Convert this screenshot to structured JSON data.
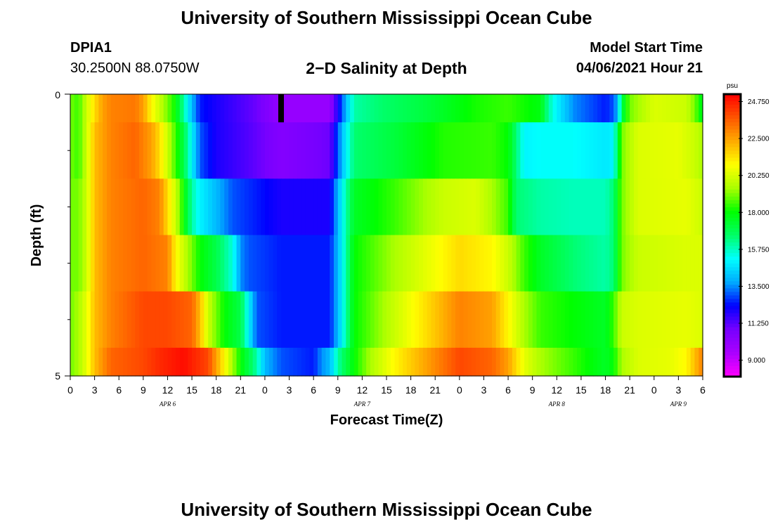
{
  "header": {
    "title": "University of Southern Mississippi Ocean Cube",
    "footer_title": "University of Southern Mississippi Ocean Cube",
    "station_id": "DPIA1",
    "coordinates": "30.2500N  88.0750W",
    "model_start_label": "Model Start Time",
    "model_start_value": "04/06/2021 Hour 21"
  },
  "chart_data": {
    "type": "heatmap",
    "title": "2−D Salinity at Depth",
    "xlabel": "Forecast Time(Z)",
    "ylabel": "Depth (ft)",
    "units": "psu",
    "x_range_hours": [
      0,
      78
    ],
    "y_range": [
      0,
      5
    ],
    "y_ticks": [
      "0",
      "5"
    ],
    "x_tick_labels": [
      "0",
      "3",
      "6",
      "9",
      "12",
      "15",
      "18",
      "21",
      "0",
      "3",
      "6",
      "9",
      "12",
      "15",
      "18",
      "21",
      "0",
      "3",
      "6",
      "9",
      "12",
      "15",
      "18",
      "21",
      "0",
      "3",
      "6"
    ],
    "date_labels": [
      {
        "label": "APR  6",
        "hour": 12
      },
      {
        "label": "APR  7",
        "hour": 36
      },
      {
        "label": "APR  8",
        "hour": 60
      },
      {
        "label": "APR  9",
        "hour": 75
      }
    ],
    "model_start_marker_hour": 26,
    "colorbar": {
      "min": 8.0,
      "max": 25.2,
      "tick_labels": [
        "24.750",
        "22.500",
        "20.250",
        "18.000",
        "15.750",
        "13.500",
        "11.250",
        "9.000"
      ],
      "tick_values": [
        24.75,
        22.5,
        20.25,
        18.0,
        15.75,
        13.5,
        11.25,
        9.0
      ]
    },
    "colors": {
      "scale": [
        "#ff00ff",
        "#aa00ff",
        "#7700ff",
        "#0000ff",
        "#00aaff",
        "#00ffff",
        "#00ff66",
        "#00ff00",
        "#aaff00",
        "#ffff00",
        "#ffaa00",
        "#ff5500",
        "#ff0000"
      ]
    },
    "layers": [
      {
        "depth_range": [
          0,
          0.5
        ],
        "knots": [
          [
            0,
            19
          ],
          [
            1,
            18.5
          ],
          [
            2,
            20
          ],
          [
            3,
            21.5
          ],
          [
            4,
            22.5
          ],
          [
            5,
            23
          ],
          [
            8,
            23.2
          ],
          [
            9,
            22.5
          ],
          [
            10,
            21
          ],
          [
            11,
            20
          ],
          [
            12,
            19
          ],
          [
            13,
            18
          ],
          [
            14,
            16
          ],
          [
            15,
            14
          ],
          [
            16,
            12.5
          ],
          [
            18,
            12
          ],
          [
            23,
            11
          ],
          [
            26,
            10
          ],
          [
            32,
            10
          ],
          [
            33,
            12
          ],
          [
            34,
            14
          ],
          [
            35,
            16
          ],
          [
            38,
            16.5
          ],
          [
            44,
            17.2
          ],
          [
            50,
            18.2
          ],
          [
            54,
            18.5
          ],
          [
            58,
            17.8
          ],
          [
            59,
            16
          ],
          [
            60,
            15
          ],
          [
            62,
            13.5
          ],
          [
            66,
            12.5
          ],
          [
            67,
            13
          ],
          [
            67.5,
            14
          ],
          [
            68,
            17
          ],
          [
            69,
            19
          ],
          [
            72,
            20.3
          ],
          [
            76,
            20
          ],
          [
            77,
            19
          ],
          [
            78,
            17.5
          ]
        ]
      },
      {
        "depth_range": [
          0.5,
          1.5
        ],
        "knots": [
          [
            0,
            19
          ],
          [
            1,
            18.5
          ],
          [
            2,
            20
          ],
          [
            3,
            22
          ],
          [
            5,
            23
          ],
          [
            8,
            23.5
          ],
          [
            10,
            22.5
          ],
          [
            11,
            21.5
          ],
          [
            12,
            20
          ],
          [
            13,
            18.5
          ],
          [
            14,
            17
          ],
          [
            15,
            15
          ],
          [
            16,
            13
          ],
          [
            18,
            12
          ],
          [
            22,
            11.3
          ],
          [
            26,
            10.5
          ],
          [
            32,
            11
          ],
          [
            33,
            13
          ],
          [
            34,
            15
          ],
          [
            35,
            16.5
          ],
          [
            40,
            17.2
          ],
          [
            46,
            18.3
          ],
          [
            52,
            18.5
          ],
          [
            54,
            18
          ],
          [
            55,
            16.5
          ],
          [
            56,
            15
          ],
          [
            58,
            15.2
          ],
          [
            62,
            15.2
          ],
          [
            66,
            14.8
          ],
          [
            67,
            15
          ],
          [
            67.5,
            17
          ],
          [
            68,
            19
          ],
          [
            70,
            20.3
          ],
          [
            75,
            20.5
          ],
          [
            77,
            20
          ],
          [
            78,
            19.5
          ]
        ]
      },
      {
        "depth_range": [
          1.5,
          2.5
        ],
        "knots": [
          [
            0,
            19
          ],
          [
            1,
            19
          ],
          [
            2,
            20
          ],
          [
            3,
            22
          ],
          [
            5,
            23
          ],
          [
            9,
            23.5
          ],
          [
            11,
            23
          ],
          [
            12,
            21.5
          ],
          [
            13,
            20
          ],
          [
            14,
            18
          ],
          [
            15,
            16
          ],
          [
            16,
            15
          ],
          [
            18,
            14
          ],
          [
            20,
            13
          ],
          [
            26,
            12
          ],
          [
            32,
            12
          ],
          [
            33,
            14
          ],
          [
            34,
            16
          ],
          [
            35,
            17.5
          ],
          [
            40,
            18.5
          ],
          [
            46,
            20
          ],
          [
            50,
            20.3
          ],
          [
            52,
            19.5
          ],
          [
            54,
            18.5
          ],
          [
            55,
            16.5
          ],
          [
            58,
            16
          ],
          [
            62,
            15.8
          ],
          [
            66,
            15.8
          ],
          [
            67,
            16.5
          ],
          [
            68,
            19
          ],
          [
            70,
            20.3
          ],
          [
            76,
            20.5
          ],
          [
            78,
            20
          ]
        ]
      },
      {
        "depth_range": [
          2.5,
          3.5
        ],
        "knots": [
          [
            0,
            19
          ],
          [
            1,
            19
          ],
          [
            2,
            20
          ],
          [
            3,
            22
          ],
          [
            5,
            23
          ],
          [
            9,
            23.5
          ],
          [
            12,
            23
          ],
          [
            13,
            21
          ],
          [
            14,
            20
          ],
          [
            16,
            18
          ],
          [
            18,
            17
          ],
          [
            20,
            15.5
          ],
          [
            21,
            13.5
          ],
          [
            22,
            13
          ],
          [
            26,
            12.5
          ],
          [
            32,
            12.5
          ],
          [
            33,
            14
          ],
          [
            34,
            16
          ],
          [
            35,
            18
          ],
          [
            40,
            19.5
          ],
          [
            44,
            20.5
          ],
          [
            48,
            21.5
          ],
          [
            52,
            21
          ],
          [
            54,
            20
          ],
          [
            56,
            18.5
          ],
          [
            58,
            17.5
          ],
          [
            62,
            16.5
          ],
          [
            66,
            16
          ],
          [
            67,
            16.5
          ],
          [
            68,
            19
          ],
          [
            70,
            20
          ],
          [
            76,
            20.3
          ],
          [
            78,
            20.3
          ]
        ]
      },
      {
        "depth_range": [
          3.5,
          4.5
        ],
        "knots": [
          [
            0,
            19
          ],
          [
            1,
            19.5
          ],
          [
            2,
            20.5
          ],
          [
            3,
            22
          ],
          [
            5,
            23
          ],
          [
            9,
            24
          ],
          [
            12,
            24
          ],
          [
            15,
            23.5
          ],
          [
            16,
            22
          ],
          [
            17,
            20
          ],
          [
            19,
            18
          ],
          [
            21,
            17
          ],
          [
            22,
            15
          ],
          [
            23,
            13
          ],
          [
            26,
            12.5
          ],
          [
            32,
            12.5
          ],
          [
            33,
            14
          ],
          [
            34,
            16
          ],
          [
            35,
            18
          ],
          [
            40,
            20
          ],
          [
            44,
            21.5
          ],
          [
            48,
            23
          ],
          [
            52,
            22.5
          ],
          [
            54,
            21
          ],
          [
            56,
            19.5
          ],
          [
            58,
            18.5
          ],
          [
            62,
            18
          ],
          [
            66,
            17.5
          ],
          [
            67,
            18.5
          ],
          [
            68,
            20
          ],
          [
            70,
            20.3
          ],
          [
            76,
            20.5
          ],
          [
            78,
            20.3
          ]
        ]
      },
      {
        "depth_range": [
          4.5,
          5
        ],
        "knots": [
          [
            0,
            19
          ],
          [
            1,
            19.5
          ],
          [
            2,
            20.5
          ],
          [
            3,
            22
          ],
          [
            5,
            23.5
          ],
          [
            9,
            24
          ],
          [
            11,
            24.5
          ],
          [
            14,
            25
          ],
          [
            17,
            24
          ],
          [
            18,
            22.5
          ],
          [
            19,
            21
          ],
          [
            20,
            19.5
          ],
          [
            21,
            18
          ],
          [
            22,
            17
          ],
          [
            23,
            16
          ],
          [
            24,
            14
          ],
          [
            26,
            13
          ],
          [
            30,
            12.5
          ],
          [
            31,
            13.5
          ],
          [
            32,
            14
          ],
          [
            33,
            16
          ],
          [
            35,
            18
          ],
          [
            37,
            19.5
          ],
          [
            40,
            21
          ],
          [
            44,
            22.5
          ],
          [
            48,
            24
          ],
          [
            52,
            23.5
          ],
          [
            54,
            22.5
          ],
          [
            56,
            20.5
          ],
          [
            58,
            19.5
          ],
          [
            62,
            18.5
          ],
          [
            66,
            17.5
          ],
          [
            67,
            18
          ],
          [
            68,
            19.5
          ],
          [
            70,
            20.3
          ],
          [
            74,
            20.5
          ],
          [
            76,
            21
          ],
          [
            77,
            22
          ],
          [
            78,
            23
          ]
        ]
      }
    ]
  }
}
